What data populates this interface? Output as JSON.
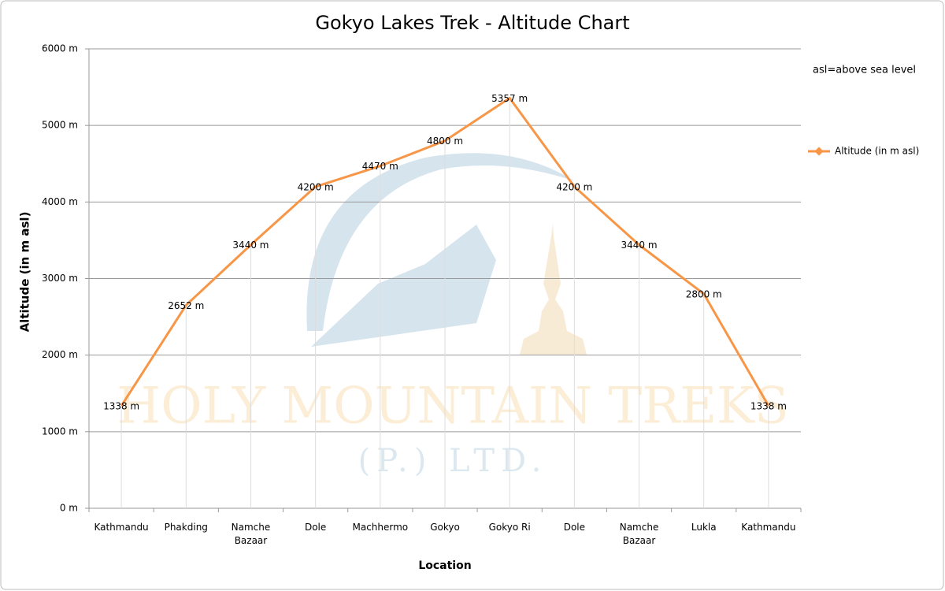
{
  "chart_data": {
    "type": "line",
    "title": "Gokyo Lakes Trek - Altitude Chart",
    "y_label": "Altitude (in m asl)",
    "x_label": "Location",
    "annotation": "asl=above sea level",
    "watermark": [
      "HOLY MOUNTAIN TREKS",
      "(P.) LTD."
    ],
    "categories": [
      "Kathmandu",
      "Phakding",
      "Namche Bazaar",
      "Dole",
      "Machhermo",
      "Gokyo",
      "Gokyo Ri",
      "Dole",
      "Namche Bazaar",
      "Lukla",
      "Kathmandu"
    ],
    "series": [
      {
        "name": "Altitude (in  m asl)",
        "color": "#f79646",
        "values": [
          1338,
          2652,
          3440,
          4200,
          4470,
          4800,
          5357,
          4200,
          3440,
          2800,
          1338
        ],
        "value_labels": [
          "1338 m",
          "2652 m",
          "3440 m",
          "4200 m",
          "4470 m",
          "4800 m",
          "5357 m",
          "4200 m",
          "3440 m",
          "2800 m",
          "1338 m"
        ]
      }
    ],
    "ylim": [
      0,
      6000
    ],
    "yticks": [
      {
        "value": 0,
        "label": "0 m"
      },
      {
        "value": 1000,
        "label": "1000 m"
      },
      {
        "value": 2000,
        "label": "2000 m"
      },
      {
        "value": 3000,
        "label": "3000 m"
      },
      {
        "value": 4000,
        "label": "4000 m"
      },
      {
        "value": 5000,
        "label": "5000 m"
      },
      {
        "value": 6000,
        "label": "6000 m"
      }
    ],
    "grid": true,
    "legend": "right"
  }
}
